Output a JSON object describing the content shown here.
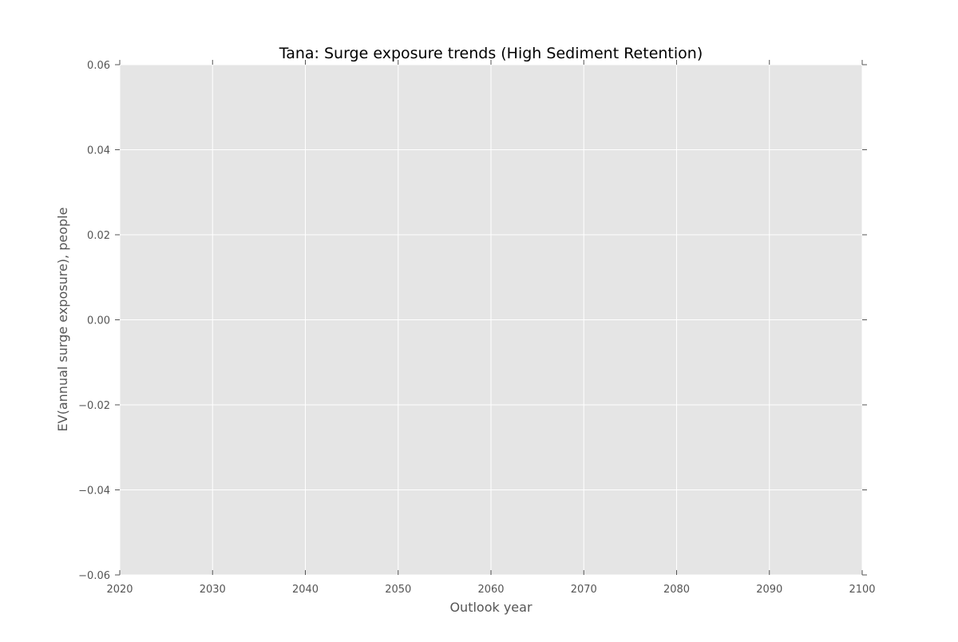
{
  "chart_data": {
    "type": "line",
    "title": "Tana: Surge exposure trends (High Sediment Retention)",
    "xlabel": "Outlook year",
    "ylabel": "EV(annual surge exposure), people",
    "xlim": [
      2020,
      2100
    ],
    "ylim": [
      -0.06,
      0.06
    ],
    "xticks": [
      2020,
      2030,
      2040,
      2050,
      2060,
      2070,
      2080,
      2090,
      2100
    ],
    "xtick_labels": [
      "2020",
      "2030",
      "2040",
      "2050",
      "2060",
      "2070",
      "2080",
      "2090",
      "2100"
    ],
    "yticks": [
      -0.06,
      -0.04,
      -0.02,
      0.0,
      0.02,
      0.04,
      0.06
    ],
    "ytick_labels": [
      "−0.06",
      "−0.04",
      "−0.02",
      "0.00",
      "0.02",
      "0.04",
      "0.06"
    ],
    "grid": true,
    "series": []
  },
  "colors": {
    "plot_background": "#e5e5e5",
    "grid": "#ffffff",
    "tick": "#555555",
    "label_text": "#555555",
    "title_text": "#000000"
  }
}
